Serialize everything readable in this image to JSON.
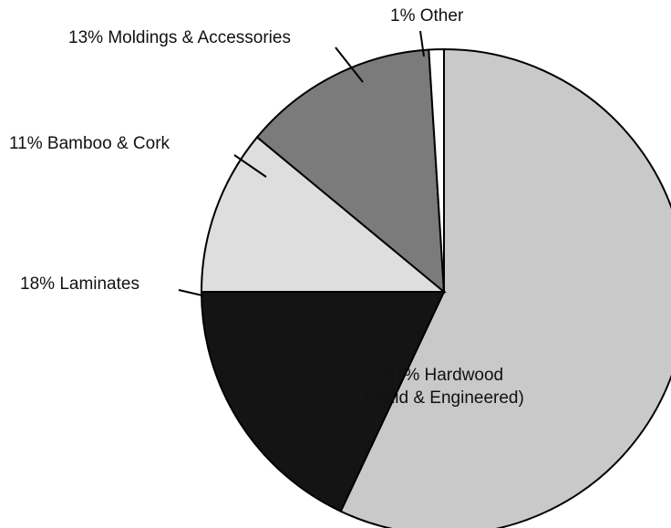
{
  "chart_data": {
    "type": "pie",
    "categories": [
      "Hardwood\n(Solid & Engineered)",
      "Laminates",
      "Bamboo & Cork",
      "Moldings & Accessories",
      "Other"
    ],
    "values": [
      57,
      18,
      11,
      13,
      1
    ],
    "value_labels": [
      "57%",
      "18%",
      "11%",
      "13%",
      "1%"
    ],
    "colors": [
      "#c9c9c9",
      "#141414",
      "#dedede",
      "#7b7b7b",
      "#ffffff"
    ]
  }
}
